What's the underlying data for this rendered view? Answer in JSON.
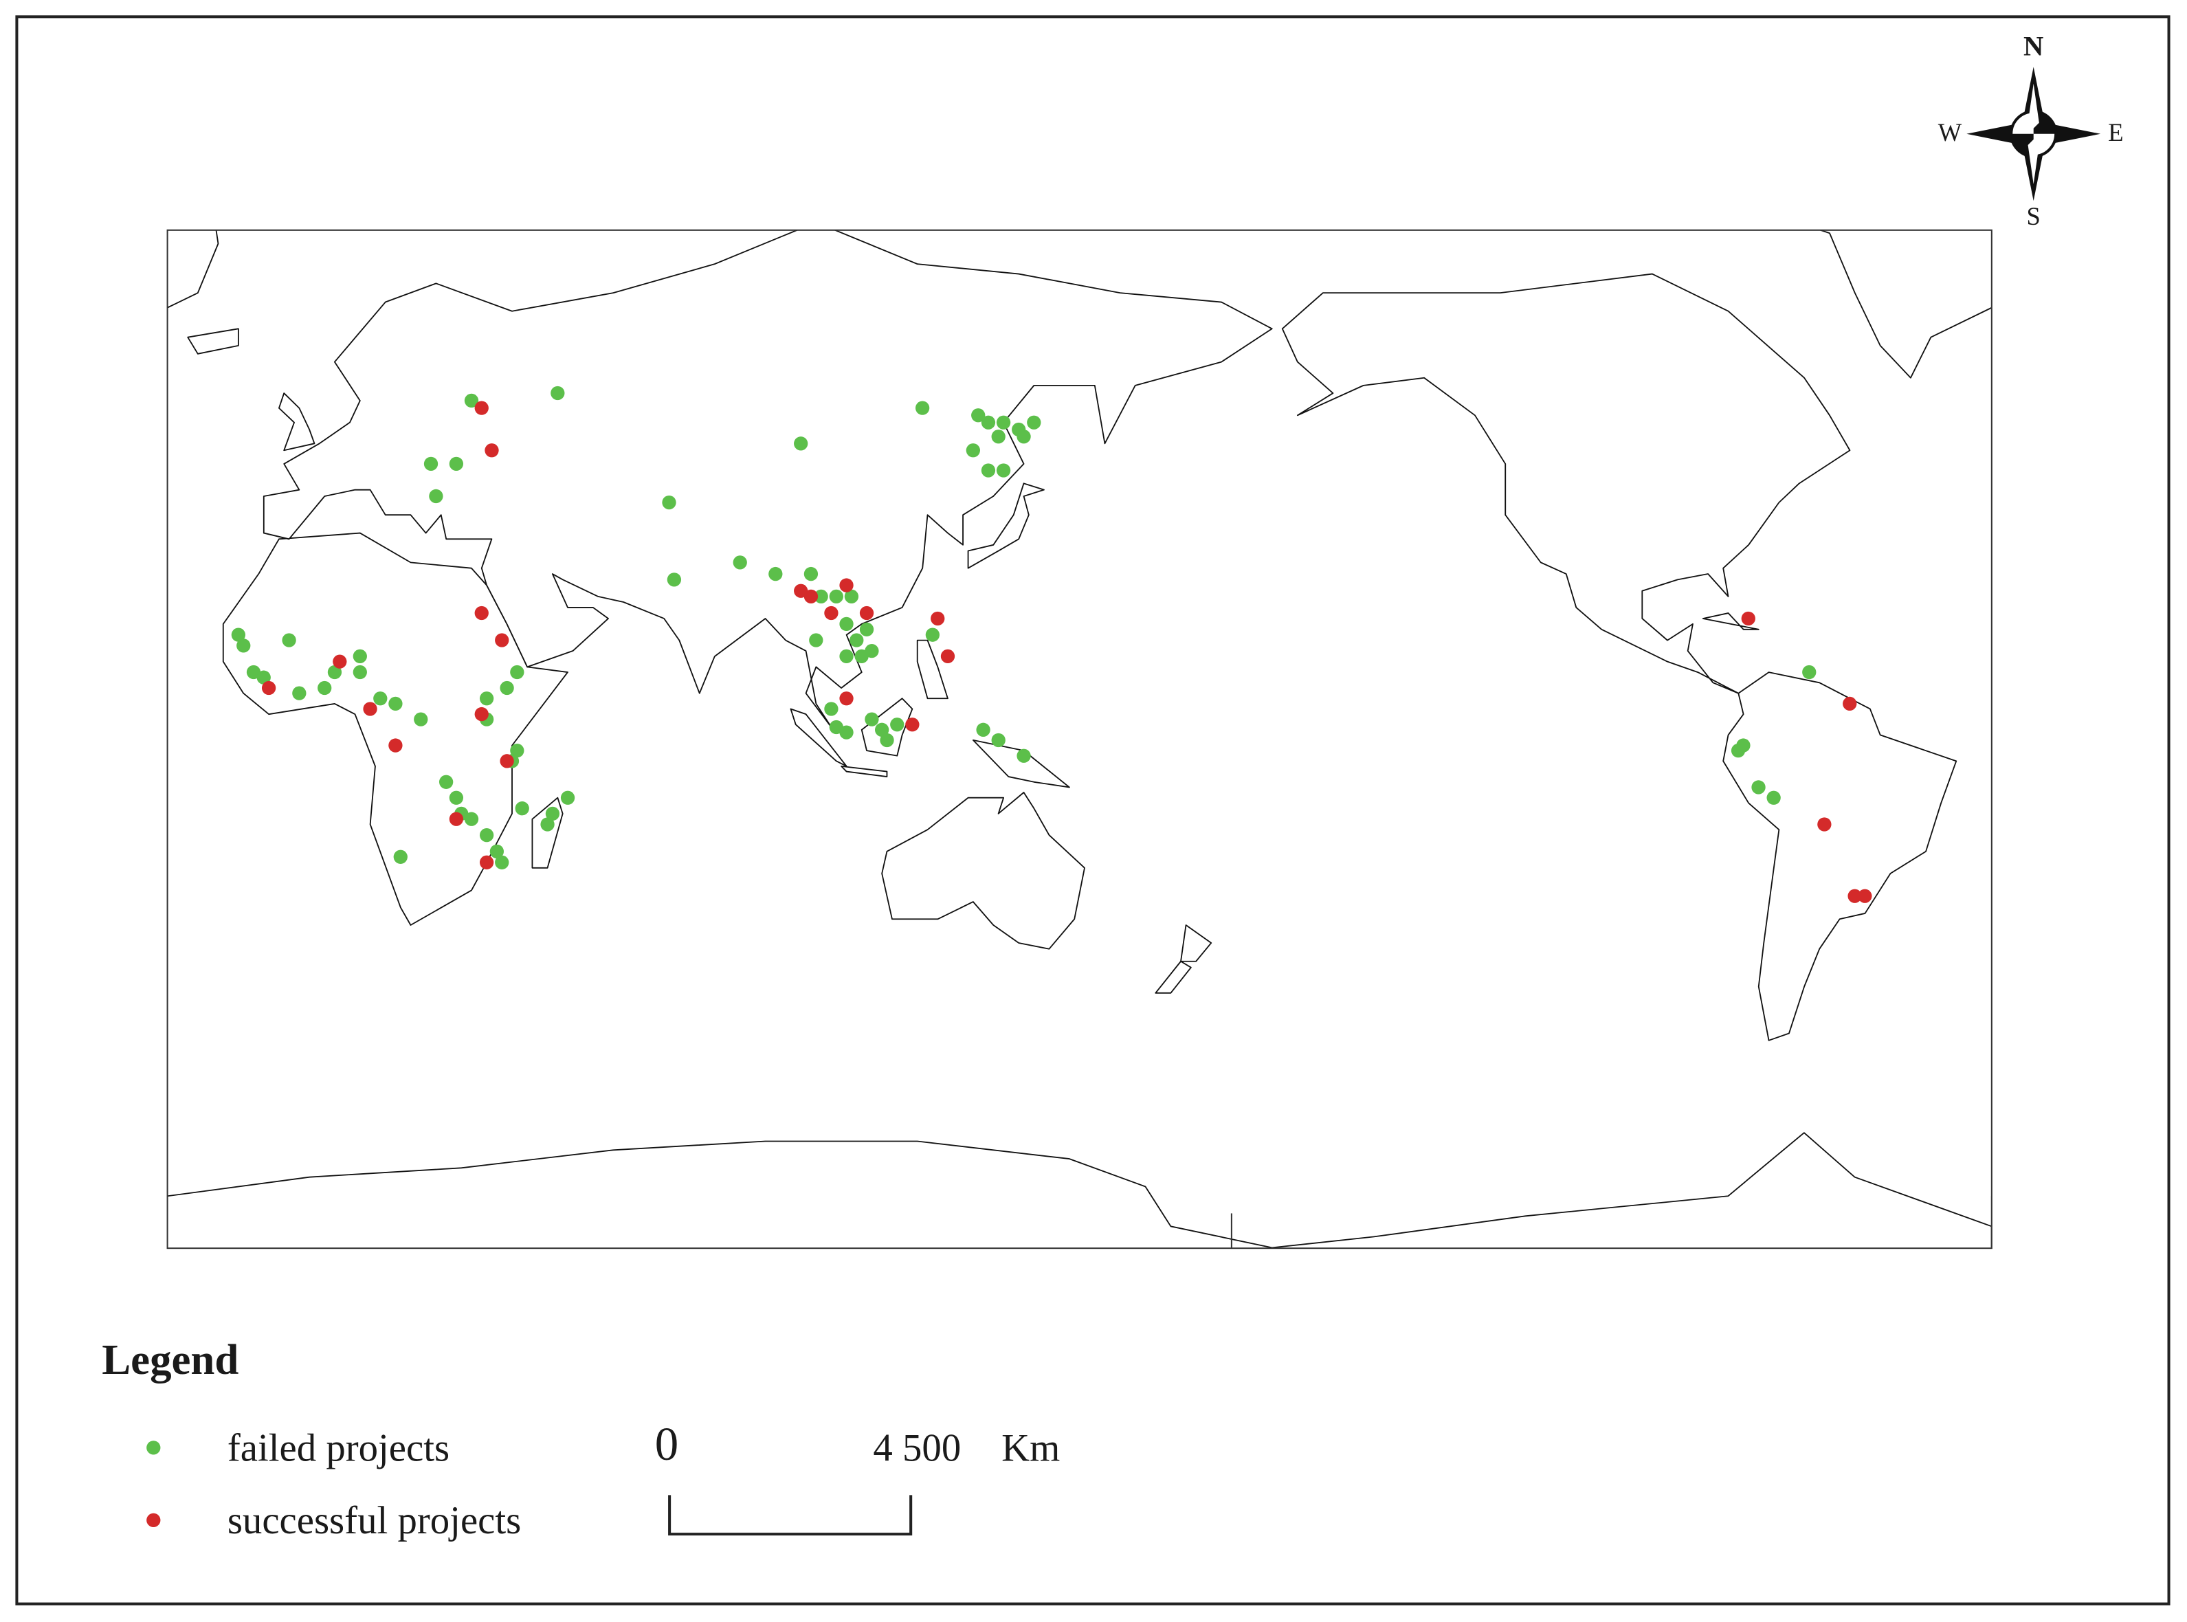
{
  "chart_data": {
    "type": "map",
    "legend_title": "Legend",
    "compass": {
      "n": "N",
      "s": "S",
      "w": "W",
      "e": "E"
    },
    "scale_bar": {
      "labels": [
        "0",
        "4 500",
        "Km"
      ]
    },
    "series": [
      {
        "name": "failed projects",
        "color": "#5cbf4a",
        "lon": [
          32,
          24,
          29,
          25,
          49,
          71,
          97,
          121,
          132,
          134,
          137,
          140,
          143,
          136,
          141,
          131,
          134,
          137,
          72,
          85,
          92,
          99,
          101,
          104,
          107,
          100,
          106,
          108,
          110,
          109,
          106,
          111,
          123,
          104,
          106,
          111,
          113,
          116,
          114,
          103,
          133,
          136,
          141,
          -14,
          -13,
          -11,
          -9,
          -4,
          -2,
          3,
          5,
          10,
          10,
          14,
          17,
          22,
          35,
          35,
          39,
          41,
          41,
          40,
          27,
          29,
          30,
          32,
          35,
          37,
          38,
          42,
          47,
          48,
          51,
          18,
          -64,
          -77,
          -78,
          -74,
          -71
        ],
        "lat": [
          57,
          48,
          48,
          43,
          58,
          42,
          51,
          56,
          55,
          54,
          54,
          53,
          54,
          52,
          52,
          50,
          47,
          47,
          29,
          32,
          30,
          30,
          26,
          26,
          26,
          18,
          21,
          18,
          20,
          15,
          15,
          16,
          19,
          1.5,
          0.5,
          3,
          1,
          2,
          -1,
          5,
          1,
          -1,
          -4,
          19,
          17,
          12,
          11,
          18,
          8,
          9,
          12,
          15,
          12,
          7,
          6,
          3,
          3,
          7,
          9,
          12,
          -3,
          -5,
          -9,
          -12,
          -15,
          -16,
          -19,
          -22,
          -24,
          -14,
          -17,
          -15,
          -12,
          -23,
          12,
          -2,
          -3,
          -10,
          -12
        ]
      },
      {
        "name": "successful projects",
        "color": "#d42a2a",
        "lon": [
          34,
          36,
          34,
          38,
          6,
          -8,
          12,
          17,
          34,
          39,
          29,
          35,
          97,
          99,
          103,
          106,
          110,
          124,
          126,
          106,
          119,
          -76,
          -56,
          -61,
          -55,
          -53
        ],
        "lat": [
          56,
          50,
          23,
          18,
          14,
          9,
          5,
          -2,
          4,
          -5,
          -16,
          -24,
          27,
          26,
          23,
          28,
          23,
          22,
          15,
          7,
          2,
          22,
          6,
          -17,
          -30,
          -30
        ]
      }
    ]
  }
}
